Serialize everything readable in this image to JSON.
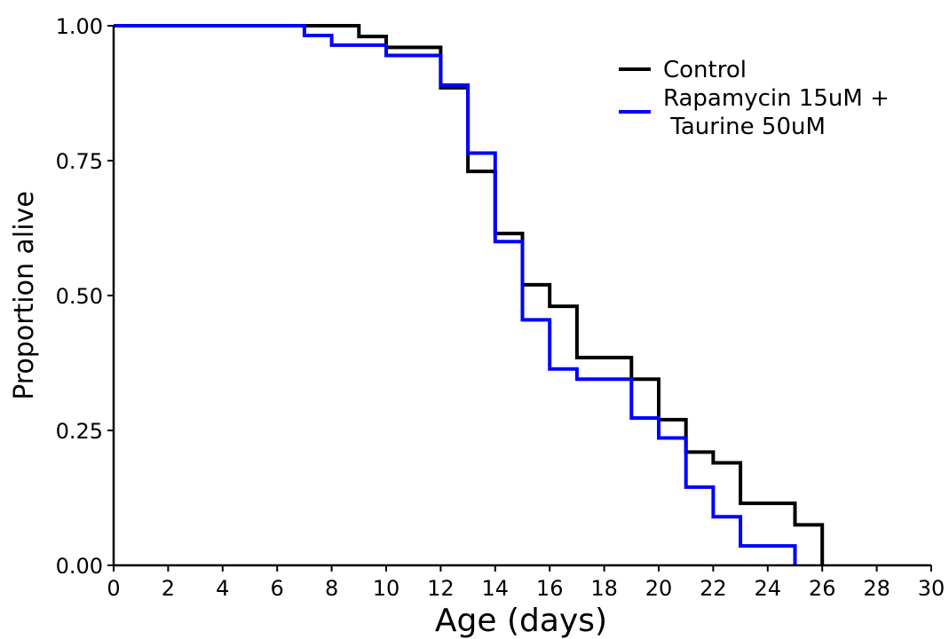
{
  "chart_data": {
    "type": "line",
    "step": true,
    "xlabel": "Age (days)",
    "ylabel": "Proportion alive",
    "xlim": [
      0,
      30
    ],
    "ylim": [
      0,
      1
    ],
    "xticks": [
      0,
      2,
      4,
      6,
      8,
      10,
      12,
      14,
      16,
      18,
      20,
      22,
      24,
      26,
      28,
      30
    ],
    "yticks": [
      0,
      0.25,
      0.5,
      0.75,
      1
    ],
    "ytick_labels": [
      "0.00",
      "0.25",
      "0.50",
      "0.75",
      "1.00"
    ],
    "grid": false,
    "legend_position": "top-right",
    "series": [
      {
        "name": "Control",
        "color": "#000000",
        "x": [
          0,
          9,
          10,
          12,
          13,
          14,
          15,
          16,
          17,
          19,
          20,
          21,
          22,
          23,
          25,
          26
        ],
        "y": [
          1.0,
          0.98,
          0.96,
          0.885,
          0.73,
          0.615,
          0.52,
          0.48,
          0.385,
          0.345,
          0.27,
          0.21,
          0.19,
          0.115,
          0.075,
          0.0
        ]
      },
      {
        "name": "Rapamycin 15uM +\n Taurine 50uM",
        "color": "#0000ff",
        "x": [
          0,
          7,
          8,
          10,
          12,
          13,
          14,
          15,
          16,
          17,
          19,
          20,
          21,
          22,
          23,
          25
        ],
        "y": [
          1.0,
          0.982,
          0.964,
          0.945,
          0.89,
          0.764,
          0.6,
          0.455,
          0.364,
          0.345,
          0.273,
          0.236,
          0.145,
          0.09,
          0.036,
          0.0
        ]
      }
    ]
  }
}
